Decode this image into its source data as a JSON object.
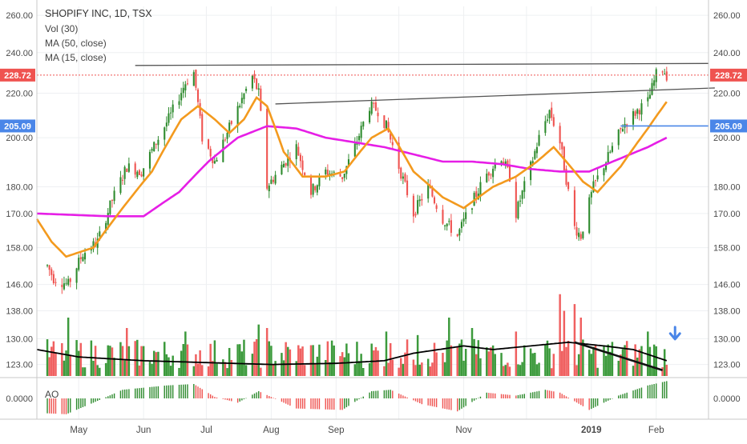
{
  "header": {
    "title": "SHOPIFY INC, 1D, TSX",
    "indicators": [
      "Vol (30)",
      "MA (50, close)",
      "MA (15, close)"
    ],
    "ao_label": "AO"
  },
  "colors": {
    "up": "#2e8b2e",
    "down": "#ef5350",
    "vol_up": "#3c9a3c",
    "vol_down": "#f06060",
    "ma50": "#e61ee6",
    "ma15": "#f39a1e",
    "vol_ma": "#000000",
    "trendline": "#555555",
    "last_price": "#ef5350",
    "marker": "#4a86e8",
    "grid": "#eef0f2",
    "text": "#4a4a4a"
  },
  "chart_data": {
    "type": "candlestick",
    "title": "SHOPIFY INC, 1D, TSX",
    "y_axis_ticks": [
      "260.00",
      "240.00",
      "220.00",
      "200.00",
      "180.00",
      "170.00",
      "158.00",
      "146.00",
      "138.00",
      "130.00",
      "123.00"
    ],
    "y_axis_scale": "log",
    "ylim": [
      120,
      265
    ],
    "x_axis_labels": [
      "May",
      "Jun",
      "Jul",
      "Aug",
      "Sep",
      "Nov",
      "2019",
      "Feb"
    ],
    "x_axis_range": [
      "2018-04-11",
      "2019-02-26"
    ],
    "last_price": {
      "value": 228.72,
      "label": "228.72"
    },
    "horizontal_level": {
      "value": 205.09,
      "label": "205.09",
      "from": "2019-01-15"
    },
    "ao_axis_label": "0.0000",
    "price_anchors": [
      [
        "2018-04-16",
        152
      ],
      [
        "2018-04-19",
        148
      ],
      [
        "2018-04-26",
        146
      ],
      [
        "2018-05-03",
        156
      ],
      [
        "2018-05-10",
        160
      ],
      [
        "2018-05-17",
        175
      ],
      [
        "2018-05-24",
        188
      ],
      [
        "2018-05-31",
        186
      ],
      [
        "2018-06-07",
        198
      ],
      [
        "2018-06-14",
        210
      ],
      [
        "2018-06-21",
        225
      ],
      [
        "2018-06-25",
        230
      ],
      [
        "2018-06-29",
        200
      ],
      [
        "2018-07-05",
        190
      ],
      [
        "2018-07-10",
        200
      ],
      [
        "2018-07-17",
        215
      ],
      [
        "2018-07-23",
        228
      ],
      [
        "2018-07-26",
        220
      ],
      [
        "2018-07-30",
        180
      ],
      [
        "2018-08-06",
        188
      ],
      [
        "2018-08-13",
        196
      ],
      [
        "2018-08-20",
        178
      ],
      [
        "2018-08-27",
        186
      ],
      [
        "2018-09-04",
        184
      ],
      [
        "2018-09-10",
        196
      ],
      [
        "2018-09-17",
        214
      ],
      [
        "2018-09-21",
        212
      ],
      [
        "2018-09-25",
        205
      ],
      [
        "2018-10-01",
        188
      ],
      [
        "2018-10-08",
        170
      ],
      [
        "2018-10-15",
        180
      ],
      [
        "2018-10-22",
        168
      ],
      [
        "2018-10-29",
        162
      ],
      [
        "2018-11-05",
        174
      ],
      [
        "2018-11-12",
        185
      ],
      [
        "2018-11-19",
        192
      ],
      [
        "2018-11-23",
        184
      ],
      [
        "2018-11-26",
        170
      ],
      [
        "2018-12-03",
        188
      ],
      [
        "2018-12-07",
        200
      ],
      [
        "2018-12-12",
        212
      ],
      [
        "2018-12-17",
        198
      ],
      [
        "2018-12-21",
        178
      ],
      [
        "2018-12-24",
        165
      ],
      [
        "2018-12-27",
        162
      ],
      [
        "2019-01-02",
        180
      ],
      [
        "2019-01-09",
        192
      ],
      [
        "2019-01-16",
        205
      ],
      [
        "2019-01-23",
        212
      ],
      [
        "2019-01-28",
        216
      ],
      [
        "2019-02-01",
        229
      ],
      [
        "2019-02-04",
        232
      ],
      [
        "2019-02-06",
        228.72
      ]
    ],
    "ma50_anchors": [
      [
        "2018-04-11",
        170
      ],
      [
        "2018-05-15",
        169
      ],
      [
        "2018-06-01",
        169
      ],
      [
        "2018-06-18",
        178
      ],
      [
        "2018-07-02",
        190
      ],
      [
        "2018-07-16",
        200
      ],
      [
        "2018-07-30",
        205
      ],
      [
        "2018-08-13",
        204
      ],
      [
        "2018-08-27",
        200
      ],
      [
        "2018-09-10",
        198
      ],
      [
        "2018-09-24",
        196
      ],
      [
        "2018-10-08",
        193
      ],
      [
        "2018-10-22",
        190
      ],
      [
        "2018-11-05",
        190
      ],
      [
        "2018-11-19",
        189
      ],
      [
        "2018-12-03",
        187
      ],
      [
        "2018-12-17",
        186
      ],
      [
        "2018-12-31",
        186
      ],
      [
        "2019-01-14",
        191
      ],
      [
        "2019-01-28",
        196
      ],
      [
        "2019-02-06",
        200
      ]
    ],
    "ma15_anchors": [
      [
        "2018-04-11",
        168
      ],
      [
        "2018-04-18",
        160
      ],
      [
        "2018-04-25",
        155
      ],
      [
        "2018-05-08",
        158
      ],
      [
        "2018-05-22",
        172
      ],
      [
        "2018-06-05",
        186
      ],
      [
        "2018-06-19",
        208
      ],
      [
        "2018-06-27",
        214
      ],
      [
        "2018-07-05",
        208
      ],
      [
        "2018-07-12",
        202
      ],
      [
        "2018-07-19",
        208
      ],
      [
        "2018-07-25",
        218
      ],
      [
        "2018-07-30",
        214
      ],
      [
        "2018-08-07",
        194
      ],
      [
        "2018-08-16",
        184
      ],
      [
        "2018-08-27",
        184
      ],
      [
        "2018-09-05",
        186
      ],
      [
        "2018-09-18",
        200
      ],
      [
        "2018-09-26",
        204
      ],
      [
        "2018-10-08",
        186
      ],
      [
        "2018-10-22",
        176
      ],
      [
        "2018-11-01",
        172
      ],
      [
        "2018-11-15",
        180
      ],
      [
        "2018-11-26",
        184
      ],
      [
        "2018-12-06",
        190
      ],
      [
        "2018-12-14",
        196
      ],
      [
        "2018-12-28",
        182
      ],
      [
        "2019-01-04",
        178
      ],
      [
        "2019-01-15",
        188
      ],
      [
        "2019-01-28",
        204
      ],
      [
        "2019-02-06",
        216
      ]
    ],
    "volume_ma_anchors": [
      [
        "2018-04-11",
        127
      ],
      [
        "2018-05-01",
        125
      ],
      [
        "2018-06-01",
        124
      ],
      [
        "2018-07-01",
        123.5
      ],
      [
        "2018-08-01",
        123
      ],
      [
        "2018-09-01",
        123.3
      ],
      [
        "2018-09-24",
        124
      ],
      [
        "2018-10-08",
        126
      ],
      [
        "2018-11-01",
        128
      ],
      [
        "2018-11-15",
        127
      ],
      [
        "2018-12-03",
        128
      ],
      [
        "2018-12-21",
        129
      ],
      [
        "2019-01-07",
        128
      ],
      [
        "2019-01-21",
        127
      ],
      [
        "2019-02-06",
        124
      ]
    ],
    "volume_spikes": [
      [
        "2018-04-26",
        136
      ],
      [
        "2018-05-24",
        133
      ],
      [
        "2018-06-21",
        132
      ],
      [
        "2018-07-26",
        134
      ],
      [
        "2018-07-30",
        133
      ],
      [
        "2018-09-25",
        132
      ],
      [
        "2018-10-10",
        131
      ],
      [
        "2018-10-25",
        136
      ],
      [
        "2018-11-05",
        133
      ],
      [
        "2018-11-26",
        132
      ],
      [
        "2018-12-17",
        143
      ],
      [
        "2018-12-19",
        138
      ],
      [
        "2018-12-24",
        140
      ],
      [
        "2018-12-27",
        136
      ],
      [
        "2019-01-28",
        132
      ]
    ],
    "ao_anchors": [
      [
        "2018-04-11",
        -1.0
      ],
      [
        "2018-04-25",
        -1.1
      ],
      [
        "2018-05-08",
        -0.3
      ],
      [
        "2018-05-22",
        0.6
      ],
      [
        "2018-06-12",
        0.9
      ],
      [
        "2018-06-25",
        1.0
      ],
      [
        "2018-07-05",
        0.1
      ],
      [
        "2018-07-16",
        -0.3
      ],
      [
        "2018-07-26",
        0.5
      ],
      [
        "2018-08-13",
        -0.7
      ],
      [
        "2018-09-04",
        -0.8
      ],
      [
        "2018-09-18",
        0.5
      ],
      [
        "2018-09-27",
        0.6
      ],
      [
        "2018-10-12",
        -0.4
      ],
      [
        "2018-10-29",
        -0.9
      ],
      [
        "2018-11-12",
        0.4
      ],
      [
        "2018-11-26",
        0.2
      ],
      [
        "2018-12-10",
        0.6
      ],
      [
        "2018-12-17",
        0.4
      ],
      [
        "2018-12-31",
        -0.8
      ],
      [
        "2019-01-14",
        0.2
      ],
      [
        "2019-01-28",
        0.9
      ],
      [
        "2019-02-06",
        1.2
      ]
    ],
    "trendlines": [
      {
        "from": [
          "2018-05-28",
          233.5
        ],
        "to": [
          "2019-02-26",
          234.5
        ]
      },
      {
        "from": [
          "2018-08-03",
          215
        ],
        "to": [
          "2019-03-01",
          222.5
        ]
      },
      {
        "from": [
          "2018-12-24",
          129
        ],
        "to": [
          "2019-02-04",
          121.5
        ]
      }
    ]
  }
}
